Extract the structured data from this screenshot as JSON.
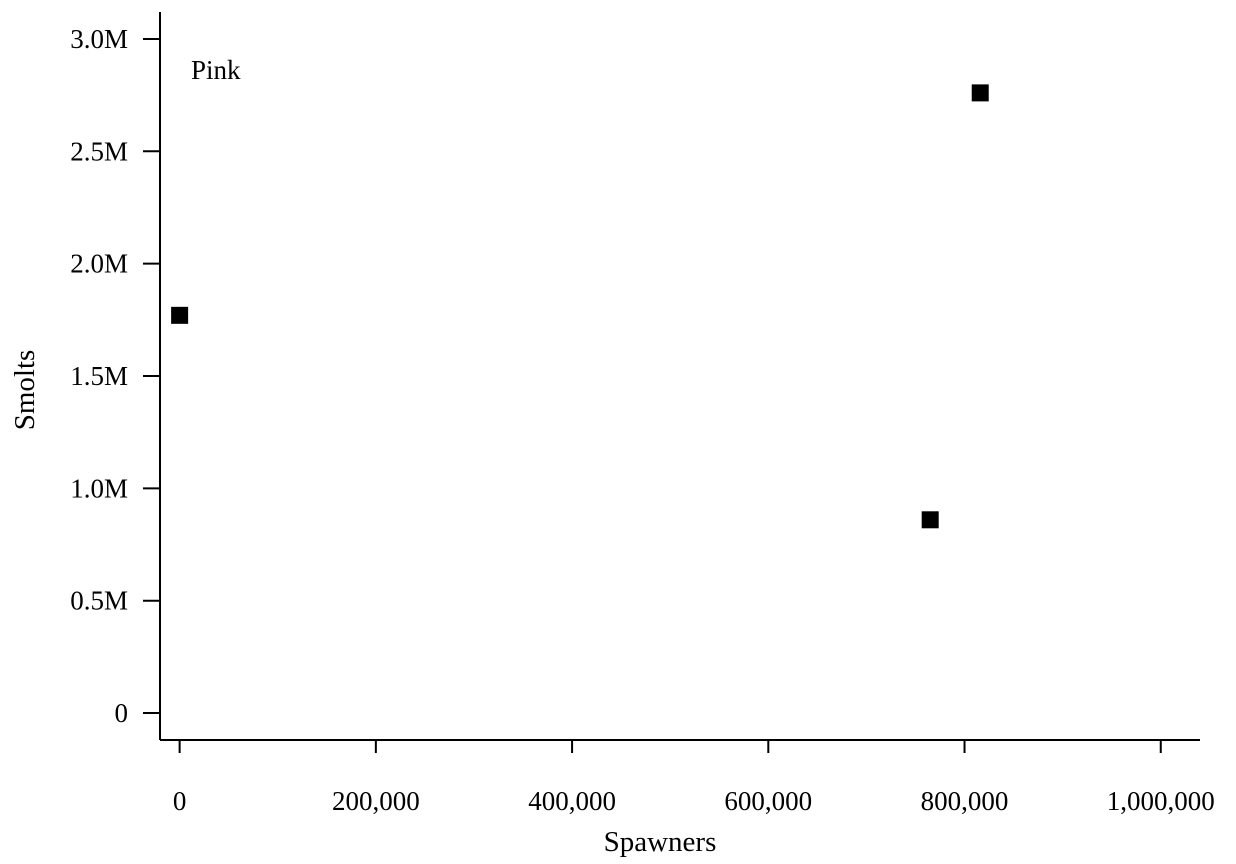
{
  "chart_data": {
    "type": "scatter",
    "xlabel": "Spawners",
    "ylabel": "Smolts",
    "annotation": "Pink",
    "xlim": [
      -20000,
      1040000
    ],
    "ylim": [
      -120000,
      3120000
    ],
    "x_ticks": [
      0,
      200000,
      400000,
      600000,
      800000,
      1000000
    ],
    "x_tick_labels": [
      "0",
      "200,000",
      "400,000",
      "600,000",
      "800,000",
      "1,000,000"
    ],
    "y_ticks": [
      0,
      500000,
      1000000,
      1500000,
      2000000,
      2500000,
      3000000
    ],
    "y_tick_labels": [
      "0",
      "0.5M",
      "1.0M",
      "1.5M",
      "2.0M",
      "2.5M",
      "3.0M"
    ],
    "grid": false,
    "marker": "square",
    "marker_color": "#000000",
    "series": [
      {
        "points": [
          {
            "x": 0,
            "y": 1770000
          },
          {
            "x": 765000,
            "y": 860000
          },
          {
            "x": 816000,
            "y": 2760000
          }
        ]
      }
    ]
  }
}
